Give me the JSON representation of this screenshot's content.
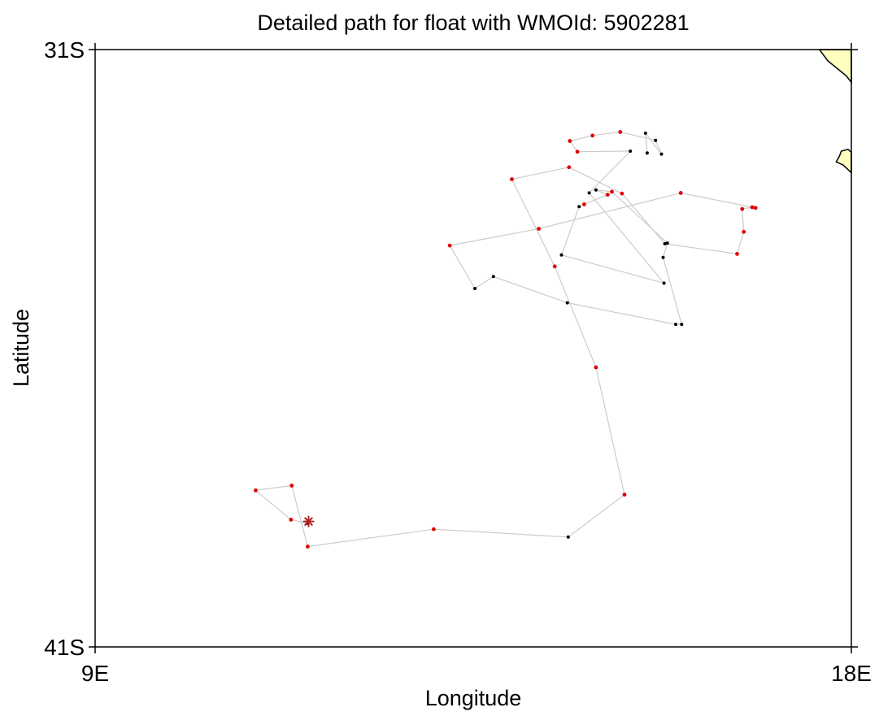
{
  "title": "Detailed path for float with WMOId: 5902281",
  "axes": {
    "xlabel": "Longitude",
    "ylabel": "Latitude",
    "x_ticks": [
      {
        "value": 9,
        "label": "9E"
      },
      {
        "value": 18,
        "label": "18E"
      }
    ],
    "y_ticks": [
      {
        "value": -31,
        "label": "31S"
      },
      {
        "value": -41,
        "label": "41S"
      }
    ],
    "xlim": [
      9,
      18
    ],
    "ylim": [
      -41,
      -31
    ]
  },
  "colors": {
    "land": "#ffffc0",
    "coastline": "#000000",
    "track_line": "#cccccc",
    "position_red": "#e00000",
    "position_black": "#000000",
    "start_marker": "#b22222"
  },
  "chart_data": {
    "type": "scatter",
    "title": "Detailed path for float with WMOId: 5902281",
    "xlabel": "Longitude",
    "ylabel": "Latitude",
    "xlim": [
      9,
      18
    ],
    "ylim": [
      -41,
      -31
    ],
    "start_marker": {
      "lon": 11.54,
      "lat": -38.9,
      "symbol": "asterisk"
    },
    "series": [
      {
        "name": "",
        "color": "red-and-black",
        "points": [
          {
            "lon": 11.53,
            "lat": -38.93,
            "c": "black"
          },
          {
            "lon": 11.33,
            "lat": -38.87,
            "c": "red"
          },
          {
            "lon": 10.91,
            "lat": -38.38,
            "c": "red"
          },
          {
            "lon": 11.34,
            "lat": -38.3,
            "c": "red"
          },
          {
            "lon": 11.53,
            "lat": -39.32,
            "c": "red"
          },
          {
            "lon": 13.03,
            "lat": -39.03,
            "c": "red"
          },
          {
            "lon": 14.63,
            "lat": -39.16,
            "c": "black"
          },
          {
            "lon": 15.3,
            "lat": -38.45,
            "c": "red"
          },
          {
            "lon": 14.96,
            "lat": -36.32,
            "c": "red"
          },
          {
            "lon": 14.47,
            "lat": -34.63,
            "c": "red"
          },
          {
            "lon": 13.96,
            "lat": -33.17,
            "c": "red"
          },
          {
            "lon": 14.64,
            "lat": -32.97,
            "c": "red"
          },
          {
            "lon": 15.27,
            "lat": -33.41,
            "c": "red"
          },
          {
            "lon": 15.78,
            "lat": -34.25,
            "c": "black"
          },
          {
            "lon": 16.64,
            "lat": -34.42,
            "c": "red"
          },
          {
            "lon": 16.72,
            "lat": -34.05,
            "c": "red"
          },
          {
            "lon": 16.7,
            "lat": -33.67,
            "c": "red"
          },
          {
            "lon": 16.82,
            "lat": -33.64,
            "c": "red"
          },
          {
            "lon": 16.86,
            "lat": -33.65,
            "c": "red"
          },
          {
            "lon": 15.97,
            "lat": -33.4,
            "c": "red"
          },
          {
            "lon": 14.28,
            "lat": -34.0,
            "c": "red"
          },
          {
            "lon": 13.22,
            "lat": -34.28,
            "c": "red"
          },
          {
            "lon": 13.52,
            "lat": -35.0,
            "c": "black"
          },
          {
            "lon": 13.74,
            "lat": -34.8,
            "c": "black"
          },
          {
            "lon": 14.62,
            "lat": -35.24,
            "c": "black"
          },
          {
            "lon": 15.91,
            "lat": -35.6,
            "c": "black"
          },
          {
            "lon": 15.98,
            "lat": -35.6,
            "c": "black"
          },
          {
            "lon": 15.76,
            "lat": -34.48,
            "c": "black"
          },
          {
            "lon": 15.81,
            "lat": -34.24,
            "c": "black"
          },
          {
            "lon": 15.15,
            "lat": -33.38,
            "c": "red"
          },
          {
            "lon": 14.96,
            "lat": -33.35,
            "c": "black"
          },
          {
            "lon": 15.1,
            "lat": -33.43,
            "c": "red"
          },
          {
            "lon": 14.82,
            "lat": -33.59,
            "c": "red"
          },
          {
            "lon": 14.76,
            "lat": -33.63,
            "c": "black"
          },
          {
            "lon": 14.55,
            "lat": -34.44,
            "c": "black"
          },
          {
            "lon": 15.77,
            "lat": -34.91,
            "c": "black"
          },
          {
            "lon": 14.88,
            "lat": -33.4,
            "c": "black"
          },
          {
            "lon": 15.37,
            "lat": -32.7,
            "c": "black"
          },
          {
            "lon": 14.74,
            "lat": -32.71,
            "c": "red"
          },
          {
            "lon": 14.65,
            "lat": -32.53,
            "c": "red"
          },
          {
            "lon": 14.92,
            "lat": -32.44,
            "c": "red"
          },
          {
            "lon": 15.25,
            "lat": -32.38,
            "c": "red"
          },
          {
            "lon": 15.67,
            "lat": -32.52,
            "c": "black"
          },
          {
            "lon": 15.74,
            "lat": -32.75,
            "c": "black"
          },
          {
            "lon": 15.55,
            "lat": -32.4,
            "c": "black"
          },
          {
            "lon": 15.57,
            "lat": -32.73,
            "c": "black"
          }
        ]
      }
    ],
    "land": [
      {
        "lon": [
          17.62,
          18.0,
          18.0,
          17.94,
          17.72,
          17.62
        ],
        "lat": [
          -31.0,
          -31.0,
          -31.55,
          -31.44,
          -31.19,
          -31.0
        ]
      },
      {
        "lon": [
          17.88,
          17.96,
          18.0,
          18.0,
          17.9,
          17.82,
          17.86,
          17.88
        ],
        "lat": [
          -32.7,
          -32.67,
          -32.72,
          -33.06,
          -32.93,
          -32.88,
          -32.78,
          -32.7
        ]
      }
    ],
    "grid": false,
    "legend": "none"
  }
}
